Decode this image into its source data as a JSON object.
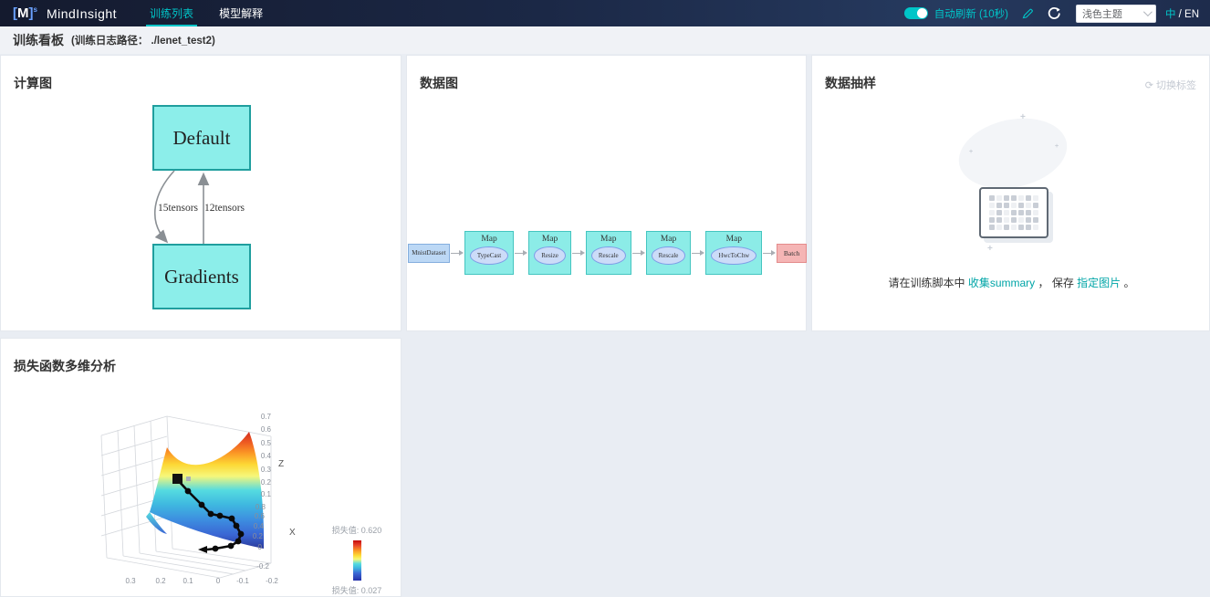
{
  "navbar": {
    "logo_bracket_l": "[",
    "logo_m": "M",
    "logo_bracket_r": "]",
    "logo_sup": "s",
    "title": "MindInsight",
    "tabs": [
      {
        "label": "训练列表",
        "active": true
      },
      {
        "label": "模型解释",
        "active": false
      }
    ],
    "auto_refresh": "自动刷新 (10秒)",
    "theme_select": "浅色主题",
    "lang_zh": "中",
    "lang_rest": " / EN"
  },
  "subheader": {
    "title": "训练看板",
    "log_path": "(训练日志路径： ./lenet_test2)"
  },
  "panels": {
    "comp_graph": {
      "title": "计算图",
      "node_top": "Default",
      "node_bottom": "Gradients",
      "edge_left": "15tensors",
      "edge_right": "12tensors"
    },
    "data_graph": {
      "title": "数据图",
      "pipeline": [
        {
          "kind": "dataset",
          "label": "MnistDataset"
        },
        {
          "kind": "map",
          "label": "Map",
          "op": "TypeCast"
        },
        {
          "kind": "map",
          "label": "Map",
          "op": "Resize"
        },
        {
          "kind": "map",
          "label": "Map",
          "op": "Rescale"
        },
        {
          "kind": "map",
          "label": "Map",
          "op": "Rescale"
        },
        {
          "kind": "map",
          "label": "Map",
          "op": "HwcToChw"
        },
        {
          "kind": "batch",
          "label": "Batch"
        }
      ]
    },
    "sampling": {
      "title": "数据抽样",
      "switch_label": "切换标签",
      "hint": [
        {
          "text": "请在训练脚本中 ",
          "link": false
        },
        {
          "text": "收集summary",
          "link": true
        },
        {
          "text": " ， 保存 ",
          "link": false
        },
        {
          "text": "指定图片",
          "link": true
        },
        {
          "text": " 。",
          "link": false
        }
      ],
      "pixel_pattern": [
        "1011010",
        "0110101",
        "0101110",
        "1101011",
        "1010110"
      ]
    },
    "loss": {
      "title": "损失函数多维分析",
      "z_label": "Z",
      "x_label": "X",
      "z_ticks": [
        "0.7",
        "0.6",
        "0.5",
        "0.4",
        "0.3",
        "0.2",
        "0.1"
      ],
      "x_ticks": [
        "0.8",
        "0.6",
        "0.4",
        "0.2",
        "0",
        "-0.2"
      ],
      "y_ticks": [
        "0.3",
        "0.2",
        "0.1",
        "0",
        "-0.1",
        "-0.2"
      ],
      "legend_max": "损失值: 0.620",
      "legend_min": "损失值: 0.027",
      "trajectory": [
        [
          93,
          82
        ],
        [
          105,
          95
        ],
        [
          120,
          110
        ],
        [
          130,
          120
        ],
        [
          140,
          122
        ],
        [
          153,
          125
        ],
        [
          158,
          133
        ],
        [
          163,
          142
        ],
        [
          160,
          150
        ],
        [
          152,
          155
        ],
        [
          135,
          158
        ],
        [
          126,
          159
        ]
      ]
    }
  },
  "colors": {
    "accent": "#00c5c8",
    "graph_node_fill": "#8ceeea",
    "graph_node_stroke": "#1f9e9e",
    "surface_top": "#c40b0b",
    "surface_bottom": "#2431a8"
  }
}
